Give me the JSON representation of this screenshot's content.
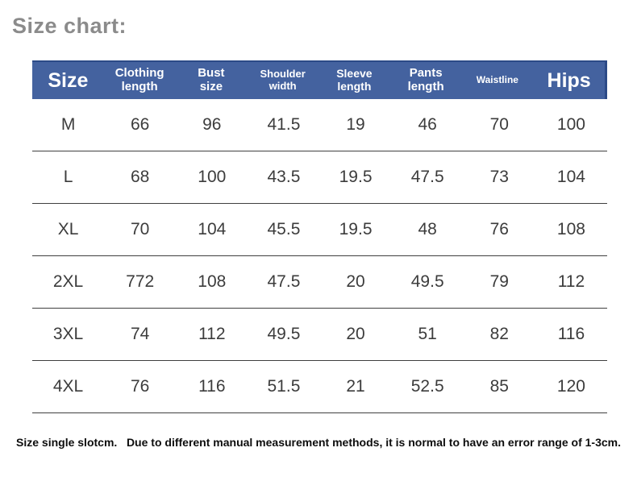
{
  "title": "Size chart:",
  "note": "Size single slotcm.   Due to different manual measurement methods, it is normal to have an error range of 1-3cm.",
  "colors": {
    "header_bg": "#44629f",
    "header_border": "#2c4a87",
    "title_gray": "#8b8b8b",
    "row_text": "#3c3c3c",
    "row_line": "#3f3f3f"
  },
  "chart_data": {
    "type": "table",
    "title": "Size chart:",
    "columns": [
      {
        "key": "size",
        "label": "Size"
      },
      {
        "key": "clothing-length",
        "label": "Clothing\nlength"
      },
      {
        "key": "bust-size",
        "label": "Bust\nsize"
      },
      {
        "key": "shoulder-width",
        "label": "Shoulder\nwidth"
      },
      {
        "key": "sleeve-length",
        "label": "Sleeve\nlength"
      },
      {
        "key": "pants-length",
        "label": "Pants\nlength"
      },
      {
        "key": "waistline",
        "label": "Waistline"
      },
      {
        "key": "hips",
        "label": "Hips"
      }
    ],
    "rows": [
      {
        "size": "M",
        "values": [
          "66",
          "96",
          "41.5",
          "19",
          "46",
          "70",
          "100"
        ]
      },
      {
        "size": "L",
        "values": [
          "68",
          "100",
          "43.5",
          "19.5",
          "47.5",
          "73",
          "104"
        ]
      },
      {
        "size": "XL",
        "values": [
          "70",
          "104",
          "45.5",
          "19.5",
          "48",
          "76",
          "108"
        ]
      },
      {
        "size": "2XL",
        "values": [
          "772",
          "108",
          "47.5",
          "20",
          "49.5",
          "79",
          "112"
        ]
      },
      {
        "size": "3XL",
        "values": [
          "74",
          "112",
          "49.5",
          "20",
          "51",
          "82",
          "116"
        ]
      },
      {
        "size": "4XL",
        "values": [
          "76",
          "116",
          "51.5",
          "21",
          "52.5",
          "85",
          "120"
        ]
      }
    ]
  }
}
